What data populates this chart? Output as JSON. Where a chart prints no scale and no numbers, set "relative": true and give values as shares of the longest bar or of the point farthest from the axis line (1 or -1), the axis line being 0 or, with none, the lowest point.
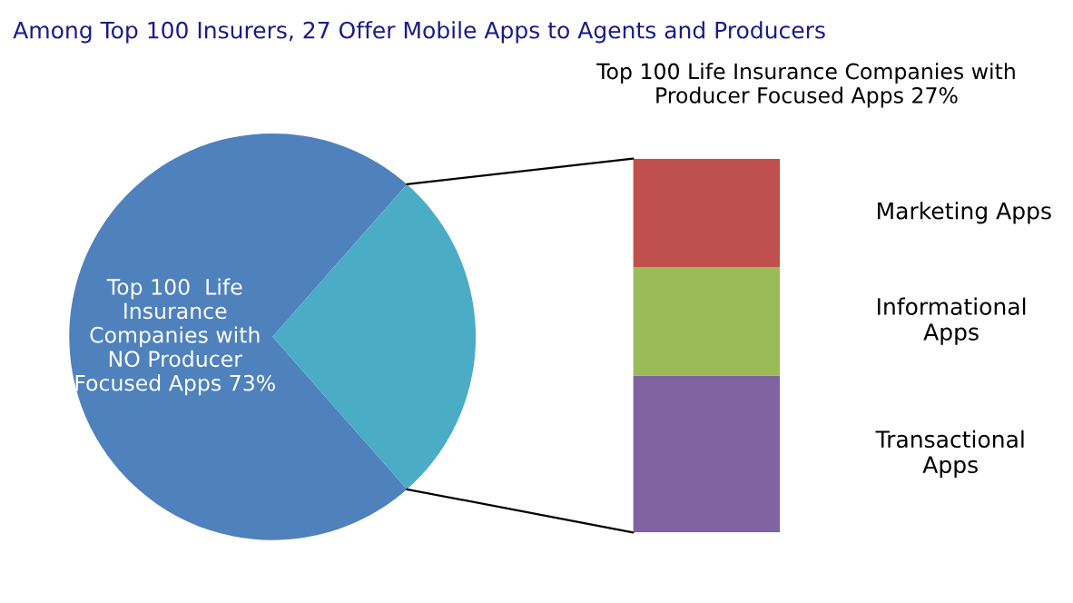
{
  "chart_data": [
    {
      "type": "pie",
      "title": "Among Top 100 Insurers, 27 Offer Mobile Apps to Agents and Producers",
      "categories": [
        "Top 100  Life\nInsurance\nCompanies with\nNO Producer\nFocused Apps 73%",
        null
      ],
      "values": [
        73,
        27
      ],
      "colors": [
        "#4f81bd",
        "#4bacc6"
      ],
      "legend": false
    },
    {
      "type": "bar",
      "title": "Top 100 Life Insurance Companies with\nProducer Focused Apps 27%",
      "stacked": true,
      "relative": true,
      "categories": [
        null
      ],
      "legend": false,
      "series": [
        {
          "name": "Transactional\nApps",
          "color": "#8064a2",
          "values": [
            0.42
          ]
        },
        {
          "name": "Informational\nApps",
          "color": "#9bbb59",
          "values": [
            0.29
          ]
        },
        {
          "name": "Marketing Apps",
          "color": "#c0504d",
          "values": [
            0.29
          ]
        }
      ]
    }
  ]
}
